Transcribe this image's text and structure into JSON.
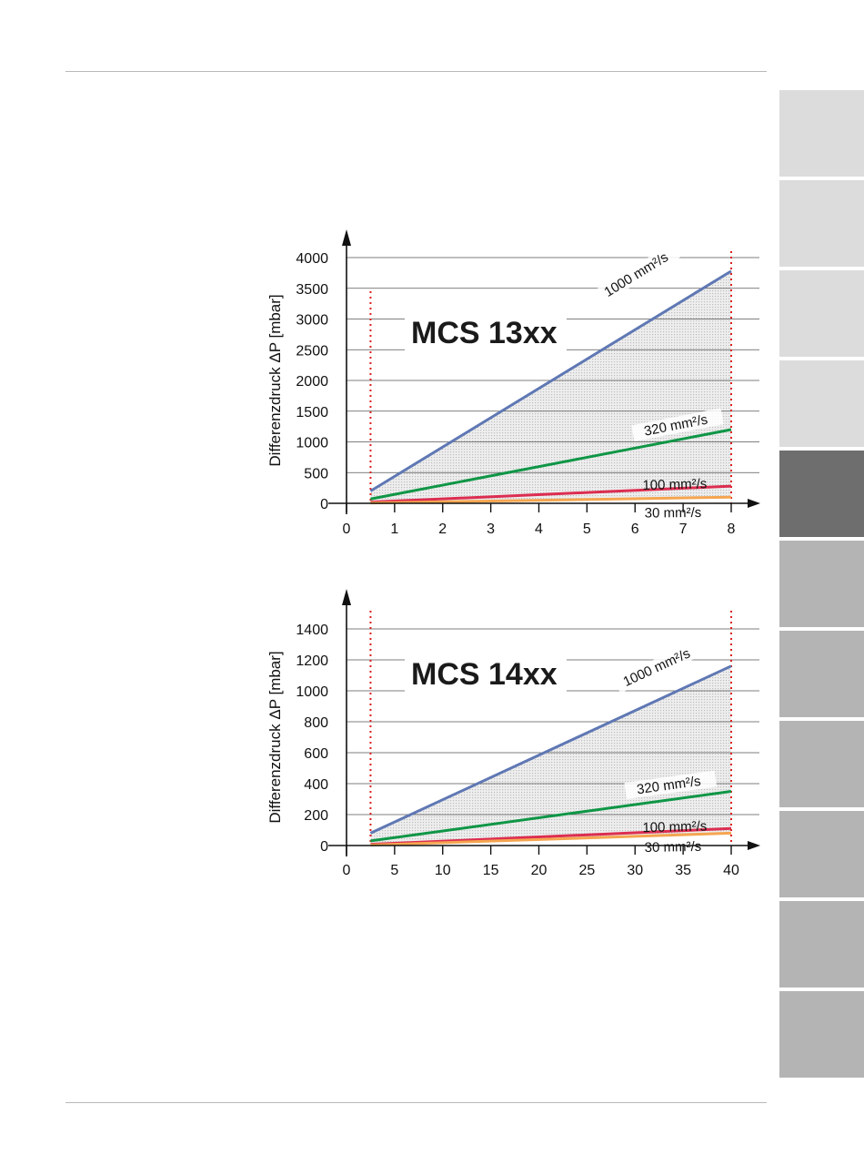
{
  "side_tabs": {
    "count": 11,
    "active_index": 4,
    "colors": [
      "#dcdcdc",
      "#dcdcdc",
      "#dcdcdc",
      "#dcdcdc",
      "#6e6e6e",
      "#b4b4b4",
      "#b4b4b4",
      "#b4b4b4",
      "#b4b4b4",
      "#b4b4b4",
      "#b4b4b4"
    ]
  },
  "colors": {
    "series_1000": "#5f78b4",
    "series_320": "#0f9646",
    "series_100": "#dc2d50",
    "series_30": "#f5a550",
    "boundary": "#dc1e1e",
    "shade": "#dcdcdc",
    "grid": "#555555"
  },
  "chart_data": [
    {
      "type": "line",
      "title": "MCS 13xx",
      "ylabel": "Differenzdruck ΔP [mbar]",
      "xlabel": "",
      "xlim": [
        0,
        8
      ],
      "ylim": [
        0,
        4000
      ],
      "x_ticks": [
        "0",
        "1",
        "2",
        "3",
        "4",
        "5",
        "6",
        "7",
        "8"
      ],
      "y_ticks": [
        "0",
        "500",
        "1000",
        "1500",
        "2000",
        "2500",
        "3000",
        "3500",
        "4000"
      ],
      "grid": true,
      "shaded_region": "between 30 mm²/s and 1000 mm²/s curves",
      "boundaries_x": [
        0.5,
        8
      ],
      "series": [
        {
          "name": "1000 mm²/s",
          "x": [
            0.5,
            8
          ],
          "y": [
            200,
            3780
          ],
          "color_key": "series_1000"
        },
        {
          "name": "320 mm²/s",
          "x": [
            0.5,
            8
          ],
          "y": [
            70,
            1200
          ],
          "color_key": "series_320"
        },
        {
          "name": "100 mm²/s",
          "x": [
            0.5,
            8
          ],
          "y": [
            20,
            280
          ],
          "color_key": "series_100"
        },
        {
          "name": "30 mm²/s",
          "x": [
            0.5,
            8
          ],
          "y": [
            5,
            100
          ],
          "color_key": "series_30"
        }
      ]
    },
    {
      "type": "line",
      "title": "MCS 14xx",
      "ylabel": "Differenzdruck ΔP [mbar]",
      "xlabel": "",
      "xlim": [
        0,
        40
      ],
      "ylim": [
        0,
        1400
      ],
      "x_ticks": [
        "0",
        "5",
        "10",
        "15",
        "20",
        "25",
        "30",
        "35",
        "40"
      ],
      "y_ticks": [
        "0",
        "200",
        "400",
        "600",
        "800",
        "1000",
        "1200",
        "1400"
      ],
      "grid": true,
      "shaded_region": "between 30 mm²/s and 1000 mm²/s curves",
      "boundaries_x": [
        2.5,
        40
      ],
      "series": [
        {
          "name": "1000 mm²/s",
          "x": [
            2.5,
            40
          ],
          "y": [
            80,
            1160
          ],
          "color_key": "series_1000"
        },
        {
          "name": "320 mm²/s",
          "x": [
            2.5,
            40
          ],
          "y": [
            30,
            350
          ],
          "color_key": "series_320"
        },
        {
          "name": "100 mm²/s",
          "x": [
            2.5,
            40
          ],
          "y": [
            8,
            110
          ],
          "color_key": "series_100"
        },
        {
          "name": "30 mm²/s",
          "x": [
            2.5,
            40
          ],
          "y": [
            3,
            80
          ],
          "color_key": "series_30"
        }
      ]
    }
  ]
}
